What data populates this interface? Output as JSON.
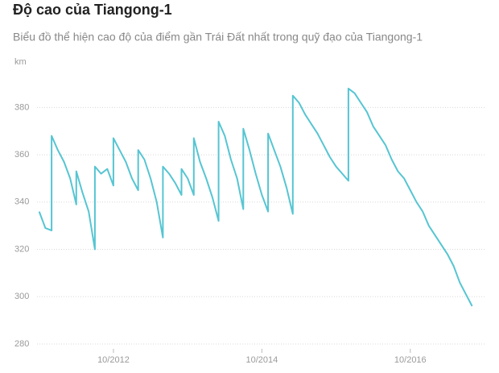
{
  "chart_data": {
    "type": "line",
    "title": "Độ cao của Tiangong-1",
    "subtitle": "Biểu đồ thể hiện cao độ của điểm gần Trái Đất nhất trong quỹ đạo của Tiangong-1",
    "y_label": "km",
    "x": [
      "10/2011",
      "11/2011",
      "12/2011",
      "12/2011",
      "01/2012",
      "02/2012",
      "03/2012",
      "04/2012",
      "04/2012",
      "05/2012",
      "06/2012",
      "07/2012",
      "07/2012",
      "08/2012",
      "09/2012",
      "10/2012",
      "10/2012",
      "11/2012",
      "12/2012",
      "01/2013",
      "02/2013",
      "02/2013",
      "03/2013",
      "04/2013",
      "05/2013",
      "06/2013",
      "06/2013",
      "07/2013",
      "08/2013",
      "09/2013",
      "09/2013",
      "10/2013",
      "11/2013",
      "11/2013",
      "12/2013",
      "01/2014",
      "02/2014",
      "03/2014",
      "03/2014",
      "04/2014",
      "05/2014",
      "06/2014",
      "07/2014",
      "07/2014",
      "08/2014",
      "09/2014",
      "10/2014",
      "11/2014",
      "11/2014",
      "12/2014",
      "01/2015",
      "02/2015",
      "03/2015",
      "03/2015",
      "04/2015",
      "05/2015",
      "06/2015",
      "07/2015",
      "08/2015",
      "09/2015",
      "10/2015",
      "11/2015",
      "12/2015",
      "12/2015",
      "01/2016",
      "02/2016",
      "03/2016",
      "04/2016",
      "05/2016",
      "06/2016",
      "07/2016",
      "08/2016",
      "09/2016",
      "10/2016",
      "11/2016",
      "12/2016",
      "01/2017",
      "02/2017",
      "03/2017",
      "04/2017",
      "05/2017",
      "06/2017",
      "07/2017",
      "08/2017"
    ],
    "series": [
      {
        "color": "#56c5d2",
        "values": [
          336,
          329,
          328,
          368,
          362,
          357,
          350,
          339,
          353,
          344,
          336,
          320,
          355,
          352,
          354,
          347,
          367,
          362,
          357,
          350,
          345,
          362,
          358,
          350,
          340,
          325,
          355,
          352,
          348,
          343,
          354,
          350,
          343,
          367,
          357,
          350,
          342,
          332,
          374,
          368,
          358,
          350,
          337,
          371,
          362,
          352,
          343,
          336,
          369,
          362,
          355,
          346,
          335,
          385,
          382,
          377,
          373,
          369,
          364,
          359,
          355,
          352,
          349,
          388,
          386,
          382,
          378,
          372,
          368,
          364,
          358,
          353,
          350,
          345,
          340,
          336,
          330,
          326,
          322,
          318,
          313,
          306,
          301,
          296
        ]
      }
    ],
    "xlim": [
      "06/2011",
      "10/2017"
    ],
    "xticks": [
      "10/2012",
      "10/2014",
      "10/2016"
    ],
    "ylim": [
      280,
      390
    ],
    "yticks": [
      280,
      300,
      320,
      340,
      360,
      380
    ],
    "grid": true
  }
}
